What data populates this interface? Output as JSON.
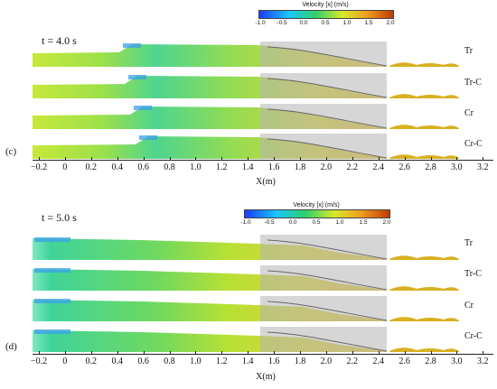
{
  "colorbar": {
    "title": "Velocity [x] (m/s)",
    "ticks": [
      "-1.0",
      "-0.5",
      "0.0",
      "0.5",
      "1.0",
      "1.5",
      "2.0"
    ]
  },
  "panels": [
    {
      "letter": "(c)",
      "time": "t = 4.0 s",
      "cases": [
        "Tr",
        "Tr-C",
        "Cr",
        "Cr-C"
      ]
    },
    {
      "letter": "(d)",
      "time": "t = 5.0 s",
      "cases": [
        "Tr",
        "Tr-C",
        "Cr",
        "Cr-C"
      ]
    }
  ],
  "x_axis": {
    "title": "X(m)",
    "tick_labels": [
      "−0.2",
      "0",
      "0.2",
      "0.4",
      "0.6",
      "0.8",
      "1.0",
      "1.2",
      "1.4",
      "1.6",
      "1.8",
      "2.0",
      "2.2",
      "2.4",
      "2.6",
      "2.8",
      "3.0",
      "3.2"
    ]
  },
  "colors": {
    "velocity_low": "#1a3cff",
    "velocity_mid": "#2fd06a",
    "velocity_high": "#c23a00",
    "structure_gray": "#b5b5b5"
  }
}
